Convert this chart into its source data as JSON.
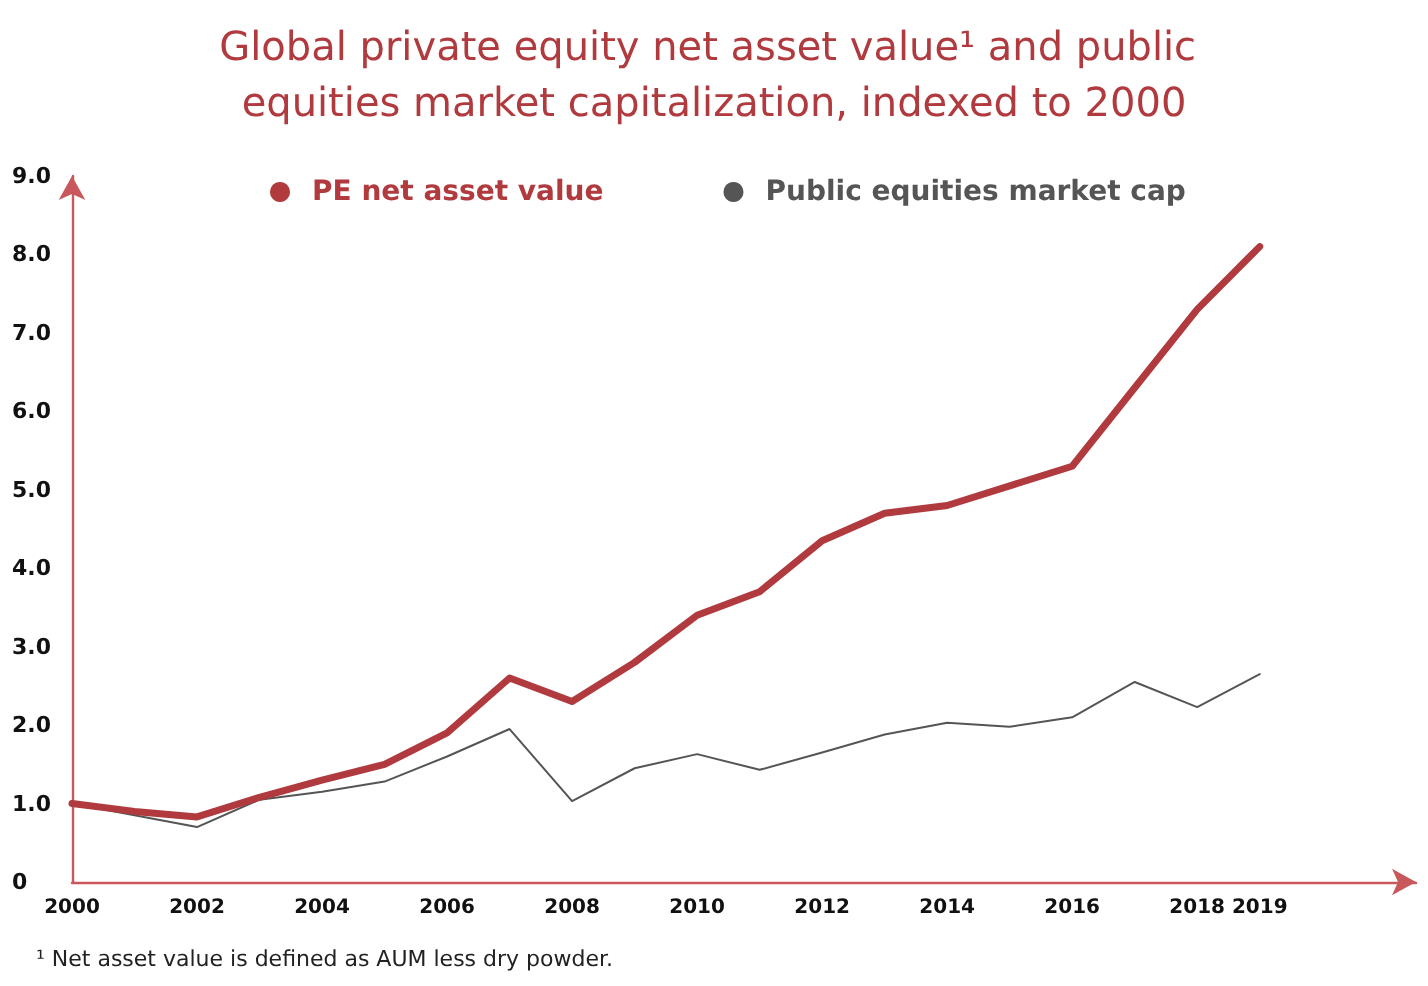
{
  "chart_data": {
    "type": "line",
    "title": "Global private equity net asset value¹ and public equities market capitalization, indexed to 2000",
    "x": [
      2000,
      2001,
      2002,
      2003,
      2004,
      2005,
      2006,
      2007,
      2008,
      2009,
      2010,
      2011,
      2012,
      2013,
      2014,
      2015,
      2016,
      2017,
      2018,
      2019
    ],
    "series": [
      {
        "name": "PE net asset value",
        "color": "#b03a3e",
        "values": [
          1.0,
          0.9,
          0.83,
          1.08,
          1.3,
          1.5,
          1.9,
          2.6,
          2.3,
          2.8,
          3.4,
          3.7,
          4.35,
          4.7,
          4.8,
          5.05,
          5.3,
          6.3,
          7.3,
          8.1
        ]
      },
      {
        "name": "Public equities market cap",
        "color": "#555555",
        "values": [
          1.0,
          0.85,
          0.7,
          1.05,
          1.15,
          1.28,
          1.6,
          1.95,
          1.03,
          1.45,
          1.63,
          1.43,
          1.65,
          1.88,
          2.03,
          1.98,
          2.1,
          2.55,
          2.23,
          2.65
        ]
      }
    ],
    "xlim": [
      2000,
      2021.5
    ],
    "xticks": [
      2000,
      2002,
      2004,
      2006,
      2008,
      2010,
      2012,
      2014,
      2016,
      2018,
      2019
    ],
    "ylim": [
      0,
      9
    ],
    "yticks": [
      {
        "value": 0,
        "label": "0"
      },
      {
        "value": 1,
        "label": "1.0"
      },
      {
        "value": 2,
        "label": "2.0"
      },
      {
        "value": 3,
        "label": "3.0"
      },
      {
        "value": 4,
        "label": "4.0"
      },
      {
        "value": 5,
        "label": "5.0"
      },
      {
        "value": 6,
        "label": "6.0"
      },
      {
        "value": 7,
        "label": "7.0"
      },
      {
        "value": 8,
        "label": "8.0"
      },
      {
        "value": 9,
        "label": "9.0"
      }
    ],
    "grid": false,
    "legend": "top",
    "marker": "none",
    "line_style": "solid",
    "annotations": [
      "¹ Net asset value is defined as AUM less dry powder."
    ]
  }
}
